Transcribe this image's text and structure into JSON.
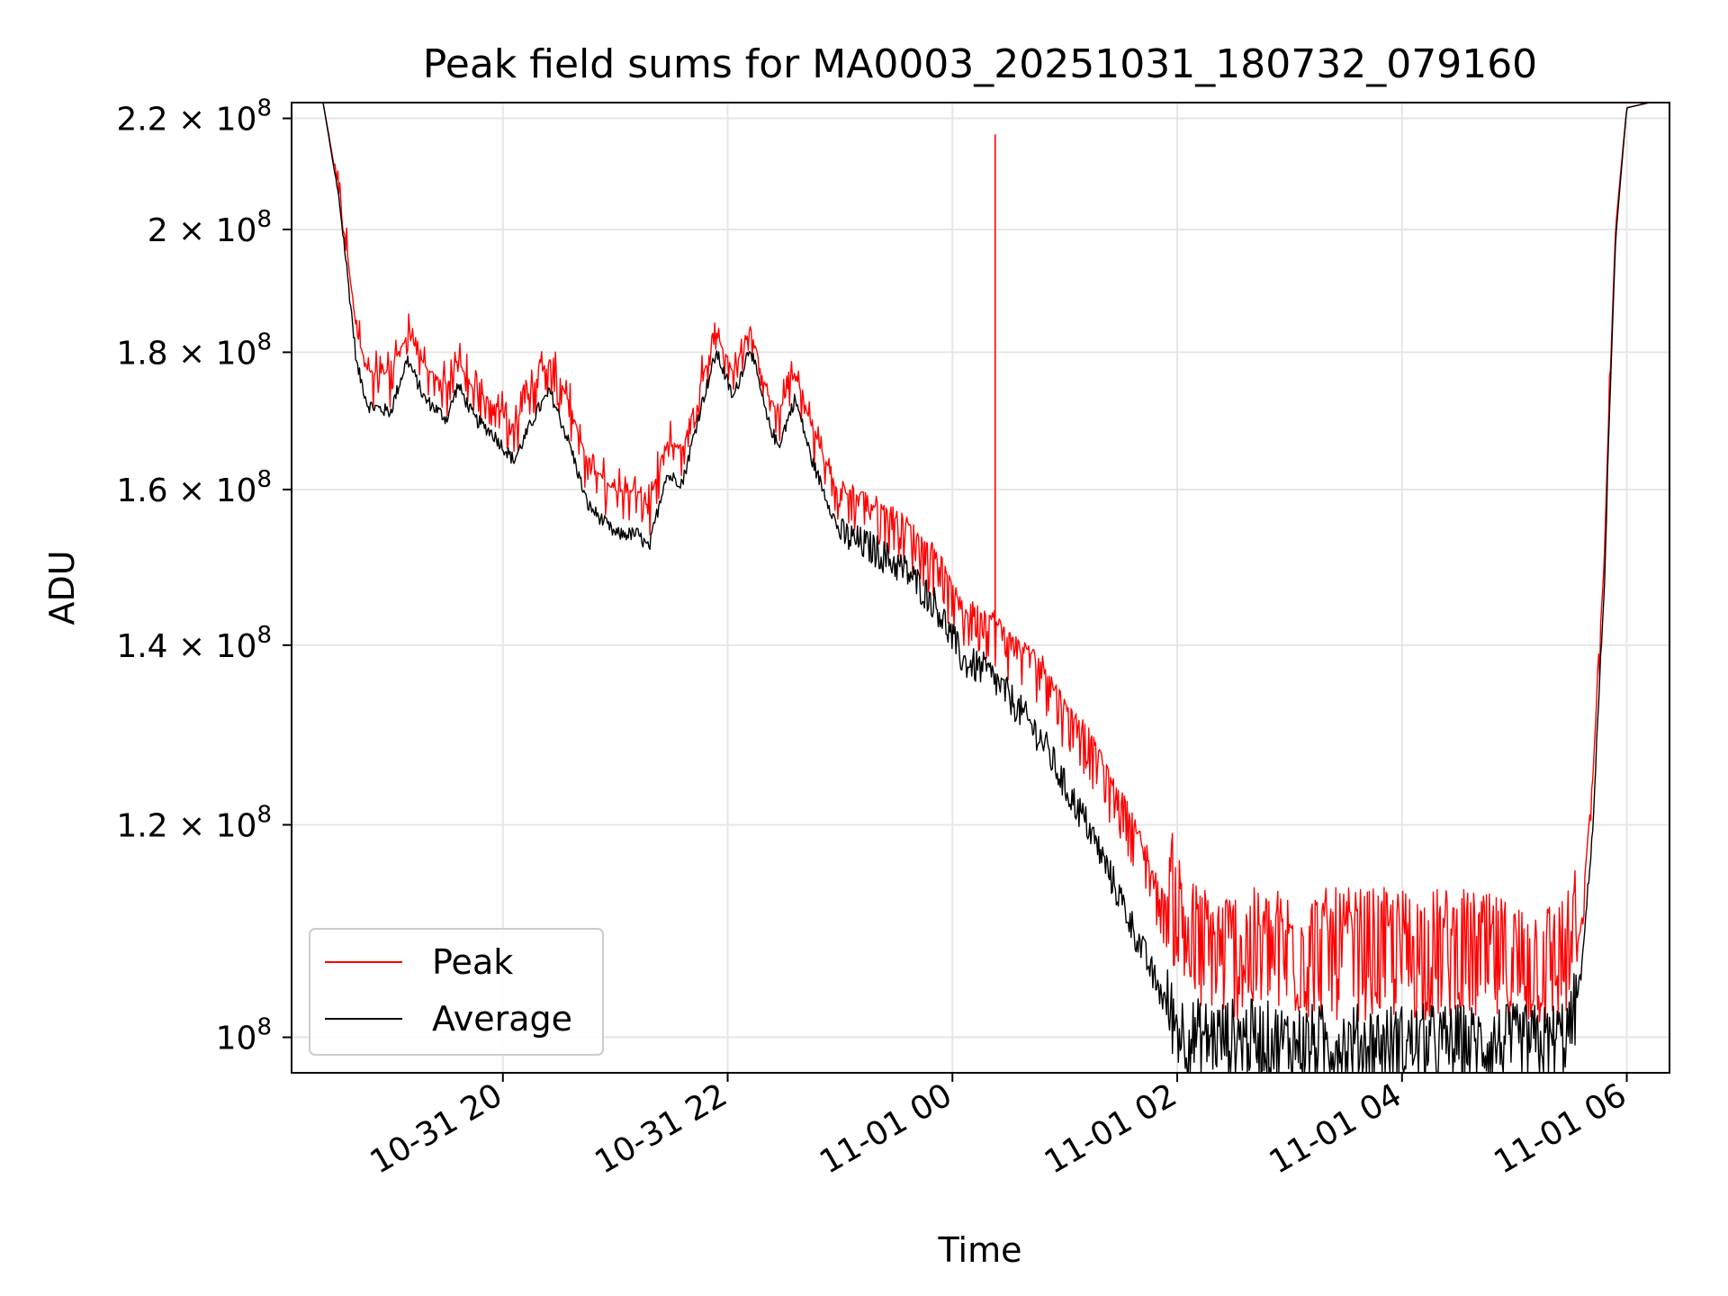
{
  "chart_data": {
    "type": "line",
    "title": "Peak field sums for MA0003_20251031_180732_079160",
    "xlabel": "Time",
    "ylabel": "ADU",
    "y_scale": "log",
    "ylim": [
      97000000,
      223000000
    ],
    "xlim_hours": [
      18.12,
      30.38
    ],
    "x_ticks": [
      {
        "hour": 20,
        "label": "10-31 20"
      },
      {
        "hour": 22,
        "label": "10-31 22"
      },
      {
        "hour": 24,
        "label": "11-01 00"
      },
      {
        "hour": 26,
        "label": "11-01 02"
      },
      {
        "hour": 28,
        "label": "11-01 04"
      },
      {
        "hour": 30,
        "label": "11-01 06"
      }
    ],
    "y_ticks": [
      {
        "value": 220000000,
        "mantissa": "2.2",
        "exp": "8"
      },
      {
        "value": 200000000,
        "mantissa": "2",
        "exp": "8"
      },
      {
        "value": 180000000,
        "mantissa": "1.8",
        "exp": "8"
      },
      {
        "value": 160000000,
        "mantissa": "1.6",
        "exp": "8"
      },
      {
        "value": 140000000,
        "mantissa": "1.4",
        "exp": "8"
      },
      {
        "value": 120000000,
        "mantissa": "1.2",
        "exp": "8"
      },
      {
        "value": 100000000,
        "mantissa": "",
        "exp": "8"
      }
    ],
    "tick_times_sign": "×",
    "tick_base": "10",
    "grid": true,
    "legend": {
      "position": "lower-left",
      "entries": [
        "Peak",
        "Average"
      ]
    },
    "series": [
      {
        "name": "Peak",
        "color": "#ff0000",
        "x_hours": [
          18.12,
          18.4,
          18.55,
          18.7,
          18.8,
          19.0,
          19.15,
          19.3,
          19.5,
          19.6,
          19.75,
          19.9,
          20.1,
          20.3,
          20.42,
          20.6,
          20.75,
          21.0,
          21.2,
          21.3,
          21.45,
          21.6,
          21.75,
          21.9,
          22.05,
          22.2,
          22.35,
          22.45,
          22.6,
          22.75,
          23.0,
          23.3,
          23.6,
          23.85,
          24.1,
          24.3,
          24.5,
          24.8,
          25.0,
          25.2,
          25.4,
          25.6,
          25.8,
          26.0,
          26.1,
          26.3,
          26.6,
          27.0,
          27.5,
          28.0,
          28.5,
          29.0,
          29.3,
          29.5,
          29.6,
          29.7,
          29.8,
          29.9,
          30.0,
          30.2,
          30.38
        ],
        "y": [
          223000000,
          223000000,
          205000000,
          182000000,
          176000000,
          176000000,
          182000000,
          177000000,
          174000000,
          178000000,
          173000000,
          172000000,
          168000000,
          175000000,
          178000000,
          171000000,
          163000000,
          159000000,
          159000000,
          157000000,
          166000000,
          165000000,
          174000000,
          182000000,
          176000000,
          183000000,
          173000000,
          170000000,
          176000000,
          168000000,
          158000000,
          156000000,
          153000000,
          149000000,
          142000000,
          142000000,
          139000000,
          136000000,
          131000000,
          128000000,
          123000000,
          119000000,
          113000000,
          108000000,
          105000000,
          104000000,
          104000000,
          104000000,
          104000000,
          104000000,
          104000000,
          103000000,
          103000000,
          104000000,
          110000000,
          125000000,
          150000000,
          200000000,
          222000000,
          223000000,
          223000000
        ],
        "spikes": [
          {
            "hour": 24.38,
            "value": 217000000
          }
        ]
      },
      {
        "name": "Average",
        "color": "#000000",
        "x_hours": [
          18.12,
          18.4,
          18.55,
          18.7,
          18.8,
          19.0,
          19.15,
          19.3,
          19.5,
          19.6,
          19.75,
          19.9,
          20.1,
          20.3,
          20.42,
          20.6,
          20.75,
          21.0,
          21.2,
          21.3,
          21.45,
          21.6,
          21.75,
          21.9,
          22.05,
          22.2,
          22.35,
          22.45,
          22.6,
          22.75,
          23.0,
          23.3,
          23.6,
          23.85,
          24.1,
          24.3,
          24.5,
          24.8,
          25.0,
          25.2,
          25.4,
          25.6,
          25.8,
          26.0,
          26.1,
          26.3,
          26.6,
          27.0,
          27.5,
          28.0,
          28.5,
          29.0,
          29.3,
          29.5,
          29.6,
          29.7,
          29.8,
          29.9,
          30.0,
          30.2,
          30.38
        ],
        "y": [
          223000000,
          223000000,
          204000000,
          178000000,
          172000000,
          171000000,
          179000000,
          173000000,
          170000000,
          175000000,
          170000000,
          168000000,
          164000000,
          171000000,
          174000000,
          166000000,
          158000000,
          154000000,
          154000000,
          152000000,
          162000000,
          161000000,
          171000000,
          180000000,
          173000000,
          181000000,
          170000000,
          166000000,
          173000000,
          164000000,
          154000000,
          152000000,
          149000000,
          145000000,
          138000000,
          137000000,
          134000000,
          129000000,
          124000000,
          120000000,
          115000000,
          110000000,
          105000000,
          101000000,
          100000000,
          100000000,
          100000000,
          99500000,
          99500000,
          99500000,
          99500000,
          99500000,
          99500000,
          100500000,
          106000000,
          120000000,
          147000000,
          198000000,
          222000000,
          223000000,
          223000000
        ]
      }
    ]
  }
}
